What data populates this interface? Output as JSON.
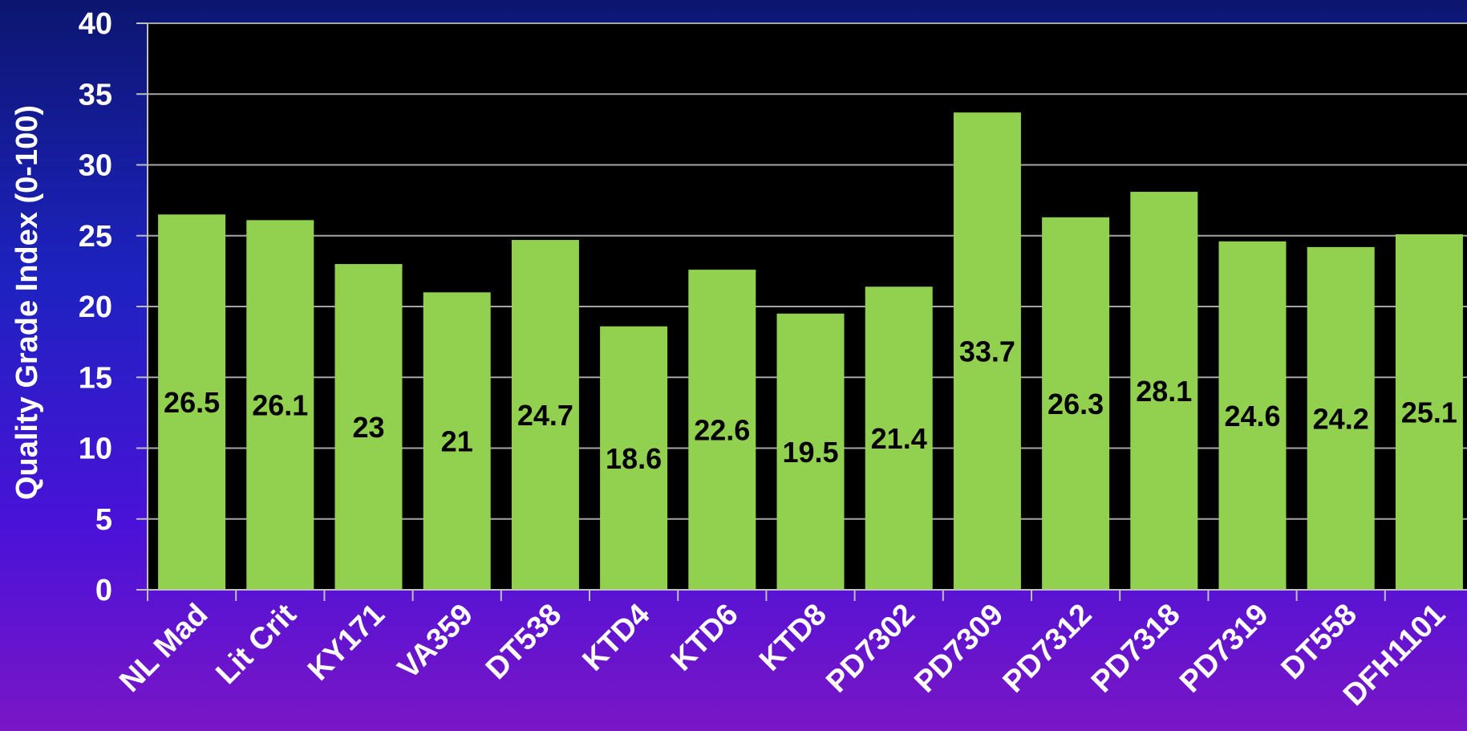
{
  "chart_data": {
    "type": "bar",
    "title": "",
    "xlabel": "",
    "ylabel": "Quality Grade Index (0-100)",
    "ylim": [
      0,
      40
    ],
    "yticks": [
      0,
      5,
      10,
      15,
      20,
      25,
      30,
      35,
      40
    ],
    "grid": true,
    "legend": "none",
    "categories": [
      "NL Mad",
      "Lit Crit",
      "KY171",
      "VA359",
      "DT538",
      "KTD4",
      "KTD6",
      "KTD8",
      "PD7302",
      "PD7309",
      "PD7312",
      "PD7318",
      "PD7319",
      "DT558",
      "DFH1101"
    ],
    "values": [
      26.5,
      26.1,
      23,
      21,
      24.7,
      18.6,
      22.6,
      19.5,
      21.4,
      33.7,
      26.3,
      28.1,
      24.6,
      24.2,
      25.1
    ],
    "data_labels": [
      "26.5",
      "26.1",
      "23",
      "21",
      "24.7",
      "18.6",
      "22.6",
      "19.5",
      "21.4",
      "33.7",
      "26.3",
      "28.1",
      "24.6",
      "24.2",
      "25.1"
    ]
  },
  "colors": {
    "plot_background": "#000000",
    "bar_fill": "#92d050",
    "gridline": "#a6a6a6",
    "axis_line": "#bfbfbf",
    "text": "#ffffff",
    "data_label_text": "#000000"
  }
}
